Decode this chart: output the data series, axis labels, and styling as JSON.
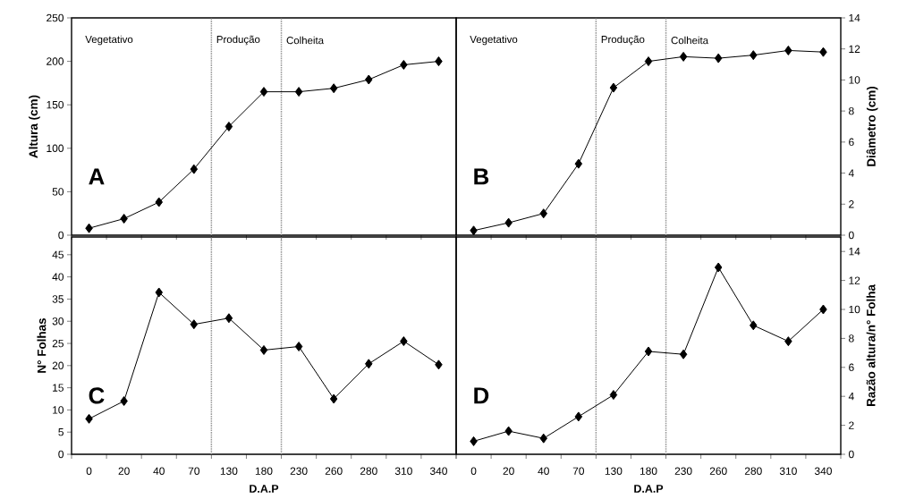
{
  "chart_data": [
    {
      "type": "line",
      "categories": [
        "0",
        "20",
        "40",
        "70",
        "130",
        "180",
        "230",
        "260",
        "280",
        "310",
        "340"
      ],
      "series": [
        {
          "color": "#000000",
          "values": [
            8,
            19,
            38,
            76,
            125,
            165,
            165,
            169,
            179,
            196,
            200
          ]
        }
      ],
      "ylabel": "Altura (cm)",
      "ylim": [
        0,
        250
      ],
      "yticks": [
        0,
        50,
        100,
        150,
        200,
        250
      ],
      "tick_labels": "y",
      "marker": "diamond",
      "line_style": "solid",
      "annotations": [
        "A",
        "Vegetativo",
        "Produção",
        "Colheita"
      ]
    },
    {
      "type": "line",
      "categories": [
        "0",
        "20",
        "40",
        "70",
        "130",
        "180",
        "230",
        "260",
        "280",
        "310",
        "340"
      ],
      "series": [
        {
          "color": "#000000",
          "values": [
            0.3,
            0.8,
            1.4,
            4.6,
            9.5,
            11.2,
            11.5,
            11.4,
            11.6,
            11.9,
            11.8
          ],
          "axis": "y2"
        }
      ],
      "y2label": "Diâmetro (cm)",
      "y2lim": [
        0,
        14
      ],
      "y2ticks": [
        0,
        2,
        4,
        6,
        8,
        10,
        12,
        14
      ],
      "tick_labels": "y",
      "marker": "diamond",
      "line_style": "solid",
      "annotations": [
        "B",
        "Vegetativo",
        "Produção",
        "Colheita"
      ]
    },
    {
      "type": "line",
      "categories": [
        "0",
        "20",
        "40",
        "70",
        "130",
        "180",
        "230",
        "260",
        "280",
        "310",
        "340"
      ],
      "series": [
        {
          "color": "#000000",
          "values": [
            8,
            12,
            36.5,
            29.3,
            30.7,
            23.5,
            24.3,
            12.5,
            20.4,
            25.5,
            20.2
          ]
        }
      ],
      "xlabel": "D.A.P",
      "ylabel": "N° Folhas",
      "ylim": [
        0,
        49
      ],
      "yticks": [
        0,
        5,
        10,
        15,
        20,
        25,
        30,
        35,
        40,
        45
      ],
      "marker": "diamond",
      "line_style": "solid",
      "annotations": [
        "C"
      ]
    },
    {
      "type": "line",
      "categories": [
        "0",
        "20",
        "40",
        "70",
        "130",
        "180",
        "230",
        "260",
        "280",
        "310",
        "340"
      ],
      "series": [
        {
          "color": "#000000",
          "values": [
            0.9,
            1.6,
            1.1,
            2.6,
            4.1,
            7.1,
            6.9,
            12.9,
            8.9,
            7.8,
            10.0
          ],
          "axis": "y2"
        }
      ],
      "xlabel": "D.A.P",
      "y2label": "Razão altura/n° Folha",
      "y2lim": [
        0,
        15
      ],
      "y2ticks": [
        0,
        2,
        4,
        6,
        8,
        10,
        12,
        14
      ],
      "marker": "diamond",
      "line_style": "solid",
      "annotations": [
        "D"
      ]
    }
  ]
}
